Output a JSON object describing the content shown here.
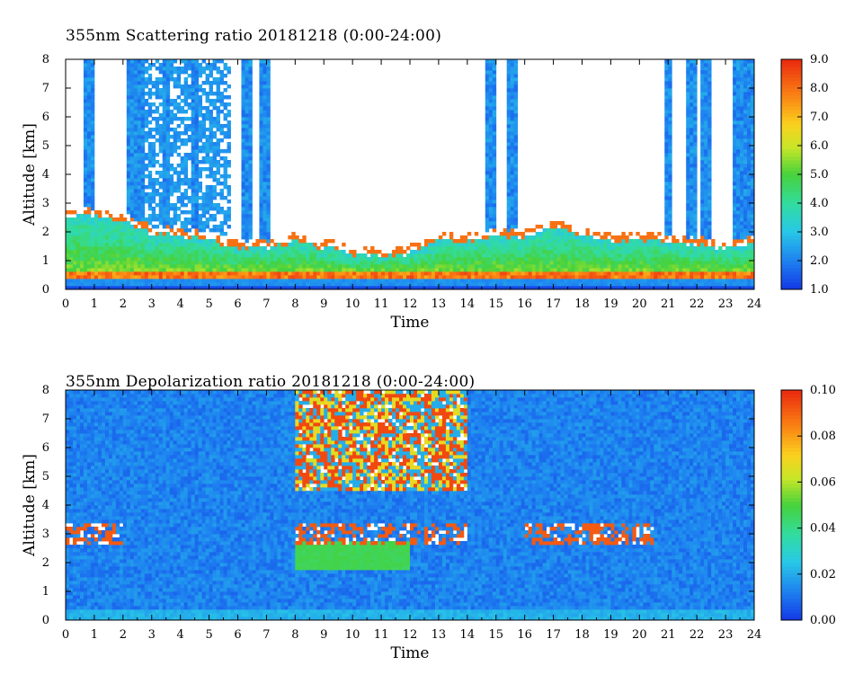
{
  "chart_data": [
    {
      "type": "heatmap",
      "title": "355nm Scattering ratio  20181218 (0:00-24:00)",
      "xlabel": "Time",
      "ylabel": "Altitude [km]",
      "xlim": [
        0,
        24
      ],
      "ylim": [
        0,
        8
      ],
      "x_ticks": [
        "0",
        "1",
        "2",
        "3",
        "4",
        "5",
        "6",
        "7",
        "8",
        "9",
        "10",
        "11",
        "12",
        "13",
        "14",
        "15",
        "16",
        "17",
        "18",
        "19",
        "20",
        "21",
        "22",
        "23",
        "24"
      ],
      "y_ticks": [
        "0",
        "1",
        "2",
        "3",
        "4",
        "5",
        "6",
        "7",
        "8"
      ],
      "colorbar": {
        "min": 1.0,
        "max": 9.0,
        "ticks": [
          "1.0",
          "2.0",
          "3.0",
          "4.0",
          "5.0",
          "6.0",
          "7.0",
          "8.0",
          "9.0"
        ]
      },
      "features": {
        "surface_layer_km": [
          0.2,
          0.6
        ],
        "boundary_layer_top_km": [
          [
            0,
            2.7
          ],
          [
            1,
            2.7
          ],
          [
            2,
            2.6
          ],
          [
            3,
            2.1
          ],
          [
            4,
            2.0
          ],
          [
            5,
            1.9
          ],
          [
            6,
            1.6
          ],
          [
            7,
            1.6
          ],
          [
            8,
            1.8
          ],
          [
            9,
            1.6
          ],
          [
            10,
            1.4
          ],
          [
            11,
            1.3
          ],
          [
            12,
            1.4
          ],
          [
            13,
            1.9
          ],
          [
            14,
            1.8
          ],
          [
            15,
            2.0
          ],
          [
            16,
            1.9
          ],
          [
            17,
            2.3
          ],
          [
            18,
            2.0
          ],
          [
            19,
            1.8
          ],
          [
            20,
            1.9
          ],
          [
            21,
            1.8
          ],
          [
            22,
            1.7
          ],
          [
            23,
            1.6
          ],
          [
            24,
            1.7
          ]
        ],
        "cloud_columns_hours": [
          0.8,
          2.3,
          2.6,
          3.5,
          4.5,
          6.3,
          6.9,
          14.8,
          15.6,
          21.0,
          21.8,
          22.3,
          23.6
        ]
      }
    },
    {
      "type": "heatmap",
      "title": "355nm Depolarization ratio  20181218 (0:00-24:00)",
      "xlabel": "Time",
      "ylabel": "Altitude [km]",
      "xlim": [
        0,
        24
      ],
      "ylim": [
        0,
        8
      ],
      "x_ticks": [
        "0",
        "1",
        "2",
        "3",
        "4",
        "5",
        "6",
        "7",
        "8",
        "9",
        "10",
        "11",
        "12",
        "13",
        "14",
        "15",
        "16",
        "17",
        "18",
        "19",
        "20",
        "21",
        "22",
        "23",
        "24"
      ],
      "y_ticks": [
        "0",
        "1",
        "2",
        "3",
        "4",
        "5",
        "6",
        "7",
        "8"
      ],
      "colorbar": {
        "min": 0.0,
        "max": 0.1,
        "ticks": [
          "0.00",
          "0.02",
          "0.04",
          "0.06",
          "0.08",
          "0.10"
        ]
      },
      "features": {
        "high_depol_region_hours": [
          8,
          14
        ],
        "high_depol_region_km": [
          4.5,
          8
        ],
        "dust_layer_hours": [
          8,
          12
        ],
        "dust_layer_km": [
          1.8,
          2.8
        ]
      }
    }
  ]
}
